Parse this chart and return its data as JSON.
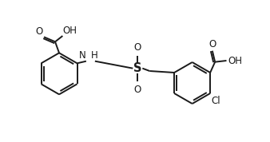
{
  "background_color": "#ffffff",
  "line_color": "#1a1a1a",
  "line_width": 1.4,
  "font_size": 8.5,
  "fig_width": 3.38,
  "fig_height": 1.78,
  "dpi": 100,
  "xlim": [
    0,
    10
  ],
  "ylim": [
    0,
    5.3
  ]
}
